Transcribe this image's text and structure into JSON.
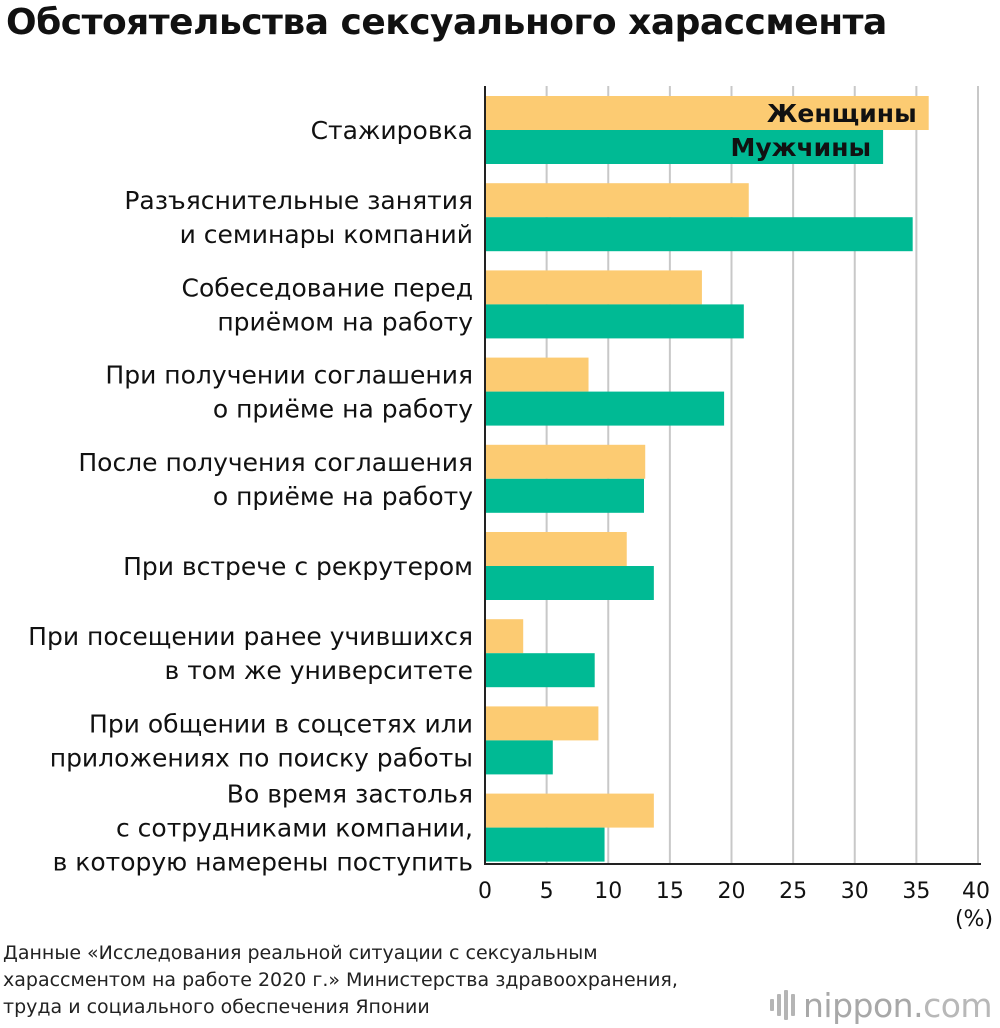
{
  "title": "Обстоятельства сексуального харассмента",
  "source_lines": [
    "Данные «Исследования реальной ситуации с сексуальным",
    "харассментом на работе 2020 г.» Министерства здравоохранения,",
    "труда и социального обеспечения Японии"
  ],
  "logo": {
    "main": "nippon",
    "dot": ".",
    "suffix": "com"
  },
  "colors": {
    "women": "#FCCB72",
    "men": "#00BA94",
    "grid": "#c8c8c8",
    "axis": "#222222"
  },
  "chart_data": {
    "type": "bar",
    "orientation": "horizontal",
    "title": "Обстоятельства сексуального харассмента",
    "categories": [
      [
        "Стажировка"
      ],
      [
        "Разъяснительные занятия",
        "и семинары компаний"
      ],
      [
        "Собеседование перед",
        "приёмом на работу"
      ],
      [
        "При получении соглашения",
        "о приёме на работу"
      ],
      [
        "После получения соглашения",
        "о приёме на работу"
      ],
      [
        "При встрече с рекрутером"
      ],
      [
        "При посещении ранее учившихся",
        "в том же университете"
      ],
      [
        "При общении в соцсетях или",
        "приложениях по поиску работы"
      ],
      [
        "Во время застолья",
        "с сотрудниками компании,",
        "в которую намерены поступить"
      ]
    ],
    "series": [
      {
        "name": "Женщины",
        "color": "#FCCB72",
        "values": [
          36.0,
          21.4,
          17.6,
          8.4,
          13.0,
          11.5,
          3.1,
          9.2,
          13.7
        ]
      },
      {
        "name": "Мужчины",
        "color": "#00BA94",
        "values": [
          32.3,
          34.7,
          21.0,
          19.4,
          12.9,
          13.7,
          8.9,
          5.5,
          9.7
        ]
      }
    ],
    "xlim": [
      0,
      40
    ],
    "xticks": [
      "0",
      "5",
      "10",
      "15",
      "20",
      "25",
      "30",
      "35",
      "40"
    ],
    "xunit": "(%)",
    "legend_placement": "inside-first-bars",
    "grid": true
  }
}
